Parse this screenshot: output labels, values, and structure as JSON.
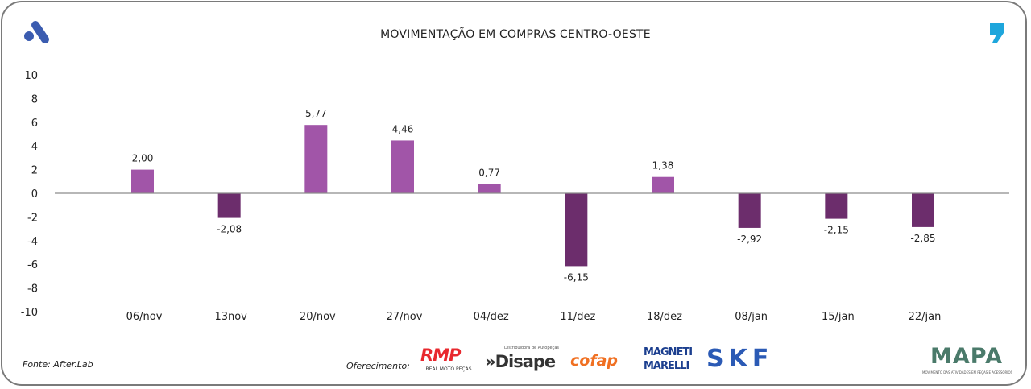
{
  "chart_data": {
    "type": "bar",
    "title": "MOVIMENTAÇÃO EM COMPRAS CENTRO-OESTE",
    "categories": [
      "06/nov",
      "13nov",
      "20/nov",
      "27/nov",
      "04/dez",
      "11/dez",
      "18/dez",
      "08/jan",
      "15/jan",
      "22/jan"
    ],
    "values": [
      2.0,
      -2.08,
      5.77,
      4.46,
      0.77,
      -6.15,
      1.38,
      -2.92,
      -2.15,
      -2.85
    ],
    "data_labels": [
      "2,00",
      "-2,08",
      "5,77",
      "4,46",
      "0,77",
      "-6,15",
      "1,38",
      "-2,92",
      "-2,15",
      "-2,85"
    ],
    "ylim": [
      -10,
      10
    ],
    "yticks": [
      10,
      8,
      6,
      4,
      2,
      0,
      -2,
      -4,
      -6,
      -8,
      -10
    ],
    "grid": false,
    "colors": {
      "positive": "#a155a8",
      "negative": "#6c2d6c",
      "axis": "#8c8c8c"
    }
  },
  "footer": {
    "source": "Fonte: After.Lab",
    "offered_by": "Oferecimento:",
    "sponsors": [
      "RMP",
      "REAL MOTO PEÇAS",
      "»Disape",
      "Distribuidora de Autopeças",
      "cofap",
      "MAGNETI MARELLI",
      "SKF"
    ],
    "brand": "MAPA",
    "brand_tagline": "MOVIMENTO DAS ATIVIDADES EM PEÇAS E ACESSÓRIOS"
  },
  "icons": {
    "top_left": "a-logo-icon",
    "top_right": "comma-logo-icon"
  }
}
